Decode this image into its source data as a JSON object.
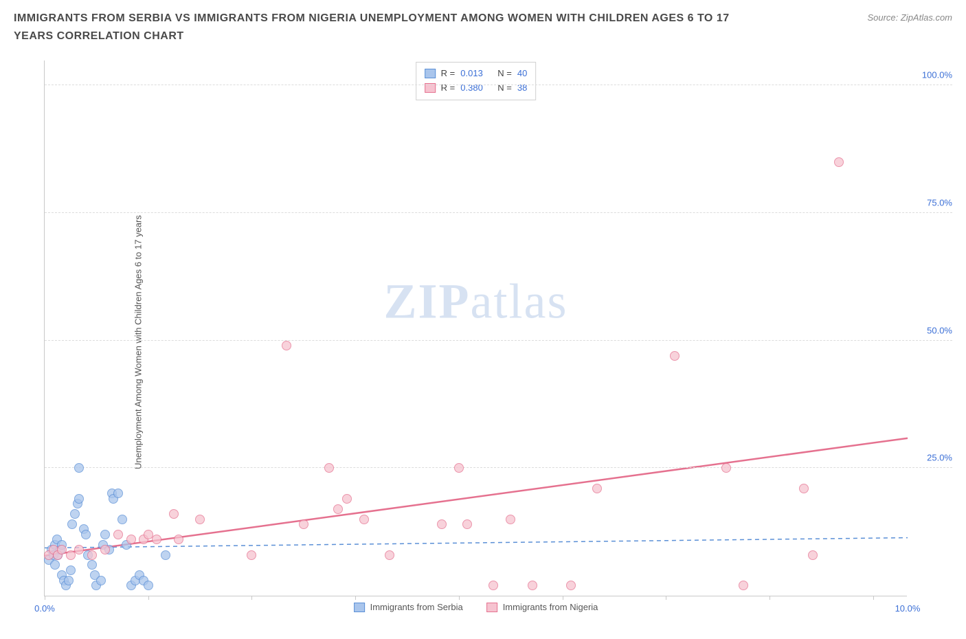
{
  "title": "IMMIGRANTS FROM SERBIA VS IMMIGRANTS FROM NIGERIA UNEMPLOYMENT AMONG WOMEN WITH CHILDREN AGES 6 TO 17 YEARS CORRELATION CHART",
  "source": "Source: ZipAtlas.com",
  "y_axis_label": "Unemployment Among Women with Children Ages 6 to 17 years",
  "watermark_a": "ZIP",
  "watermark_b": "atlas",
  "chart": {
    "type": "scatter",
    "xlim": [
      0,
      10
    ],
    "ylim": [
      0,
      105
    ],
    "y_ticks": [
      25,
      50,
      75,
      100
    ],
    "y_tick_labels": [
      "25.0%",
      "50.0%",
      "75.0%",
      "100.0%"
    ],
    "x_tick_positions": [
      0,
      1.2,
      2.4,
      3.6,
      4.8,
      6.0,
      7.2,
      8.4,
      9.6
    ],
    "x_min_label": "0.0%",
    "x_max_label": "10.0%",
    "background_color": "#ffffff",
    "grid_color": "#dcdcdc",
    "axis_color": "#c8c8c8",
    "tick_label_color": "#3b6fd6",
    "point_radius": 7,
    "series": [
      {
        "name": "Immigrants from Serbia",
        "fill": "#a9c5ec",
        "stroke": "#5a8fd6",
        "line_color": "#5a8fd6",
        "line_dash": "6,5",
        "line_width": 1.5,
        "trend": {
          "y_at_x0": 9.5,
          "y_at_x10": 11.5
        },
        "R": "0.013",
        "N": "40",
        "points": [
          [
            0.05,
            7
          ],
          [
            0.08,
            9
          ],
          [
            0.1,
            8
          ],
          [
            0.12,
            10
          ],
          [
            0.12,
            6
          ],
          [
            0.14,
            11
          ],
          [
            0.15,
            8
          ],
          [
            0.18,
            9
          ],
          [
            0.2,
            10
          ],
          [
            0.2,
            4
          ],
          [
            0.22,
            3
          ],
          [
            0.25,
            2
          ],
          [
            0.28,
            3
          ],
          [
            0.3,
            5
          ],
          [
            0.32,
            14
          ],
          [
            0.35,
            16
          ],
          [
            0.38,
            18
          ],
          [
            0.4,
            19
          ],
          [
            0.4,
            25
          ],
          [
            0.45,
            13
          ],
          [
            0.48,
            12
          ],
          [
            0.5,
            8
          ],
          [
            0.55,
            6
          ],
          [
            0.58,
            4
          ],
          [
            0.6,
            2
          ],
          [
            0.65,
            3
          ],
          [
            0.68,
            10
          ],
          [
            0.7,
            12
          ],
          [
            0.75,
            9
          ],
          [
            0.78,
            20
          ],
          [
            0.8,
            19
          ],
          [
            0.85,
            20
          ],
          [
            0.9,
            15
          ],
          [
            0.95,
            10
          ],
          [
            1.0,
            2
          ],
          [
            1.05,
            3
          ],
          [
            1.1,
            4
          ],
          [
            1.15,
            3
          ],
          [
            1.2,
            2
          ],
          [
            1.4,
            8
          ]
        ]
      },
      {
        "name": "Immigrants from Nigeria",
        "fill": "#f6c3d0",
        "stroke": "#e5718f",
        "line_color": "#e5718f",
        "line_dash": "",
        "line_width": 2.5,
        "trend": {
          "y_at_x0": 8.0,
          "y_at_x10": 31.0
        },
        "R": "0.380",
        "N": "38",
        "points": [
          [
            0.05,
            8
          ],
          [
            0.1,
            9
          ],
          [
            0.15,
            8
          ],
          [
            0.2,
            9
          ],
          [
            0.3,
            8
          ],
          [
            0.4,
            9
          ],
          [
            0.55,
            8
          ],
          [
            0.7,
            9
          ],
          [
            0.85,
            12
          ],
          [
            1.0,
            11
          ],
          [
            1.15,
            11
          ],
          [
            1.2,
            12
          ],
          [
            1.3,
            11
          ],
          [
            1.5,
            16
          ],
          [
            1.55,
            11
          ],
          [
            1.8,
            15
          ],
          [
            2.4,
            8
          ],
          [
            2.8,
            49
          ],
          [
            3.0,
            14
          ],
          [
            3.3,
            25
          ],
          [
            3.4,
            17
          ],
          [
            3.5,
            19
          ],
          [
            3.7,
            15
          ],
          [
            4.0,
            8
          ],
          [
            4.6,
            14
          ],
          [
            4.8,
            25
          ],
          [
            4.9,
            14
          ],
          [
            5.2,
            2
          ],
          [
            5.4,
            15
          ],
          [
            5.65,
            2
          ],
          [
            6.1,
            2
          ],
          [
            6.4,
            21
          ],
          [
            7.3,
            47
          ],
          [
            7.9,
            25
          ],
          [
            8.1,
            2
          ],
          [
            8.8,
            21
          ],
          [
            8.9,
            8
          ],
          [
            9.2,
            85
          ]
        ]
      }
    ]
  },
  "legend_tl": {
    "R_label": "R =",
    "N_label": "N ="
  },
  "legend_bottom": [
    "Immigrants from Serbia",
    "Immigrants from Nigeria"
  ]
}
